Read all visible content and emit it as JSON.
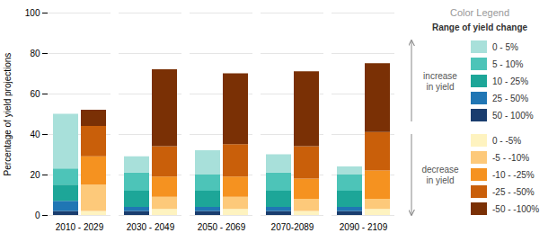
{
  "chart_data": {
    "type": "bar",
    "stacked": true,
    "ylabel": "Percentage of yield projections",
    "categories": [
      "2010 - 2029",
      "2030 - 2049",
      "2050 - 2069",
      "2070-2089",
      "2090 - 2109"
    ],
    "ylim": [
      0,
      100
    ],
    "yticks": [
      0,
      20,
      40,
      60,
      80,
      100
    ],
    "grid": true,
    "legend_title": "Color Legend",
    "legend_subtitle": "Range of yield change",
    "groups": [
      {
        "name": "increase\nin yield",
        "series": [
          {
            "name": "50 - 100%",
            "color": "#1a3d6e",
            "values": [
              2,
              2,
              2,
              2,
              2
            ]
          },
          {
            "name": "25 - 50%",
            "color": "#2076b4",
            "values": [
              5,
              2,
              2,
              2,
              2
            ]
          },
          {
            "name": "10 - 25%",
            "color": "#1da698",
            "values": [
              8,
              8,
              8,
              8,
              8
            ]
          },
          {
            "name": "5 - 10%",
            "color": "#4dc4b8",
            "values": [
              8,
              9,
              8,
              9,
              8
            ]
          },
          {
            "name": "0 - 5%",
            "color": "#a8e0da",
            "values": [
              27,
              8,
              12,
              9,
              4
            ]
          }
        ]
      },
      {
        "name": "decrease\nin yield",
        "series": [
          {
            "name": "0 - -5%",
            "color": "#fef3c0",
            "values": [
              2,
              3,
              3,
              2,
              3
            ]
          },
          {
            "name": "-5 - -10%",
            "color": "#fdc97a",
            "values": [
              13,
              6,
              6,
              6,
              5
            ]
          },
          {
            "name": "-10 - -25%",
            "color": "#f59220",
            "values": [
              14,
              10,
              10,
              10,
              14
            ]
          },
          {
            "name": "-25 - -50%",
            "color": "#c95f0a",
            "values": [
              15,
              15,
              16,
              16,
              19
            ]
          },
          {
            "name": "-50 - -100%",
            "color": "#7a3005",
            "values": [
              8,
              38,
              35,
              37,
              34
            ]
          }
        ]
      }
    ]
  }
}
